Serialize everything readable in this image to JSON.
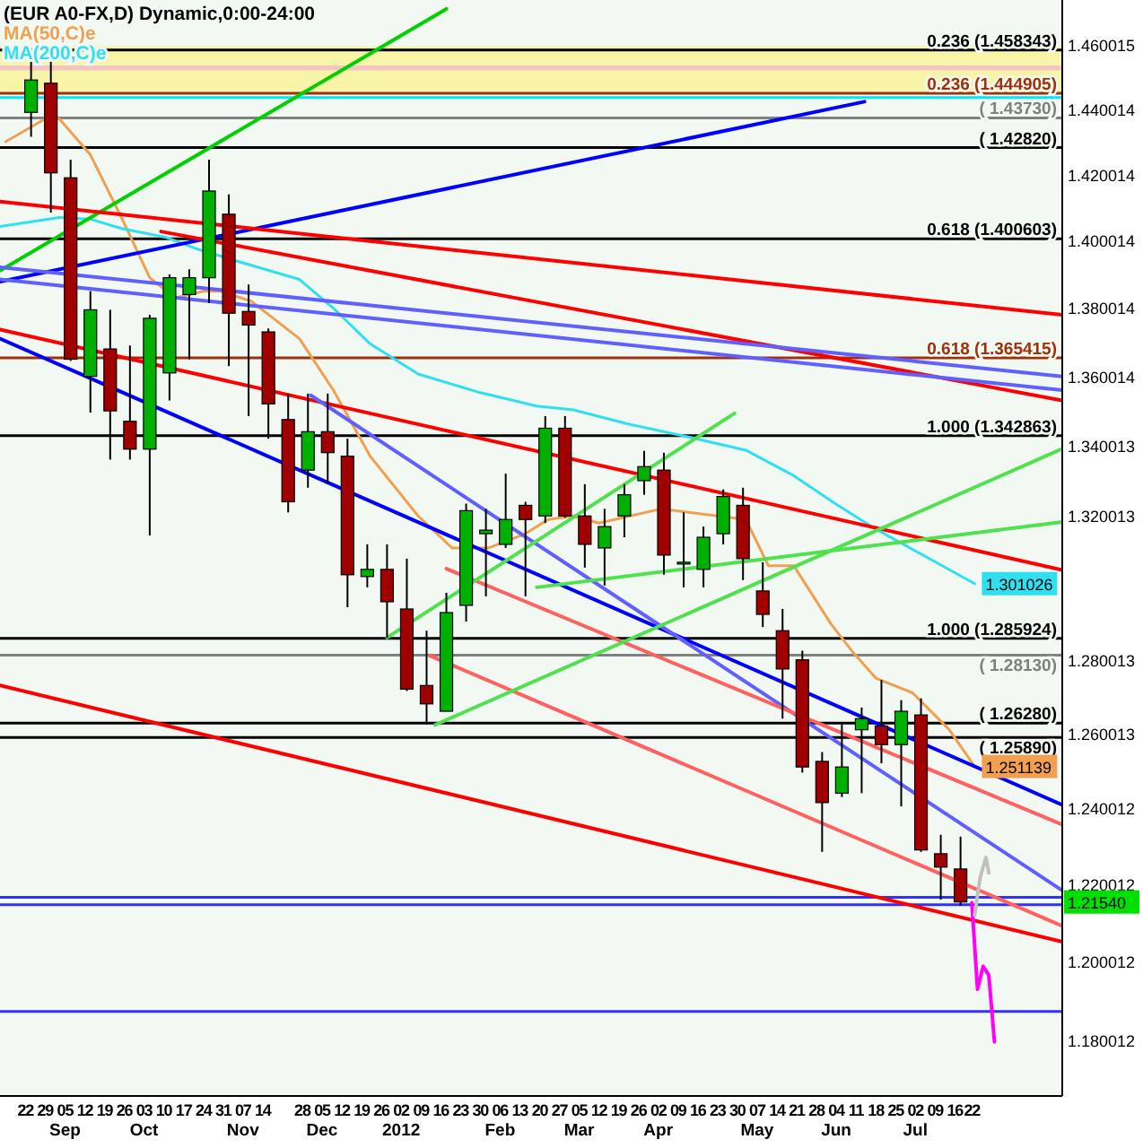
{
  "chart_data": {
    "type": "candlestick",
    "title": "(EUR A0-FX,D) Dynamic,0:00-24:00",
    "log": true,
    "legend": "top left",
    "xlim": [
      "2011-08-13",
      "2012-08-23"
    ],
    "ylim": [
      1.166,
      1.474
    ],
    "xticks": [
      {
        "value": "2011-08-22",
        "label": "22"
      },
      {
        "value": "2011-08-29",
        "label": "29"
      },
      {
        "value": "2011-09-05",
        "label": "05\nSep"
      },
      {
        "value": "2011-09-12",
        "label": "12"
      },
      {
        "value": "2011-09-19",
        "label": "19"
      },
      {
        "value": "2011-09-26",
        "label": "26"
      },
      {
        "value": "2011-10-03",
        "label": "03\nOct"
      },
      {
        "value": "2011-10-10",
        "label": "10"
      },
      {
        "value": "2011-10-17",
        "label": "17"
      },
      {
        "value": "2011-10-24",
        "label": "24"
      },
      {
        "value": "2011-10-31",
        "label": "31"
      },
      {
        "value": "2011-11-07",
        "label": "07\nNov"
      },
      {
        "value": "2011-11-14",
        "label": "14"
      },
      {
        "value": "2011-11-28",
        "label": "28"
      },
      {
        "value": "2011-12-05",
        "label": "05\nDec"
      },
      {
        "value": "2011-12-12",
        "label": "12"
      },
      {
        "value": "2011-12-19",
        "label": "19"
      },
      {
        "value": "2011-12-26",
        "label": "26"
      },
      {
        "value": "2012-01-02",
        "label": "02\n2012"
      },
      {
        "value": "2012-01-09",
        "label": "09"
      },
      {
        "value": "2012-01-16",
        "label": "16"
      },
      {
        "value": "2012-01-23",
        "label": "23"
      },
      {
        "value": "2012-01-30",
        "label": "30"
      },
      {
        "value": "2012-02-06",
        "label": "06\nFeb"
      },
      {
        "value": "2012-02-13",
        "label": "13"
      },
      {
        "value": "2012-02-20",
        "label": "20"
      },
      {
        "value": "2012-02-27",
        "label": "27"
      },
      {
        "value": "2012-03-05",
        "label": "05\nMar"
      },
      {
        "value": "2012-03-12",
        "label": "12"
      },
      {
        "value": "2012-03-19",
        "label": "19"
      },
      {
        "value": "2012-03-26",
        "label": "26"
      },
      {
        "value": "2012-04-02",
        "label": "02\nApr"
      },
      {
        "value": "2012-04-09",
        "label": "09"
      },
      {
        "value": "2012-04-16",
        "label": "16"
      },
      {
        "value": "2012-04-23",
        "label": "23"
      },
      {
        "value": "2012-04-30",
        "label": "30"
      },
      {
        "value": "2012-05-07",
        "label": "07\nMay"
      },
      {
        "value": "2012-05-14",
        "label": "14"
      },
      {
        "value": "2012-05-21",
        "label": "21"
      },
      {
        "value": "2012-05-28",
        "label": "28"
      },
      {
        "value": "2012-06-04",
        "label": "04\nJun"
      },
      {
        "value": "2012-06-11",
        "label": "11"
      },
      {
        "value": "2012-06-18",
        "label": "18"
      },
      {
        "value": "2012-06-25",
        "label": "25"
      },
      {
        "value": "2012-07-02",
        "label": "02\nJul"
      },
      {
        "value": "2012-07-09",
        "label": "09"
      },
      {
        "value": "2012-07-16",
        "label": "16"
      },
      {
        "value": "2012-07-22",
        "label": "22"
      }
    ],
    "yticks": [
      1.460015,
      1.440014,
      1.420014,
      1.400014,
      1.380014,
      1.360014,
      1.340013,
      1.320013,
      1.280013,
      1.260013,
      1.240012,
      1.220012,
      1.200012,
      1.180012
    ],
    "x": [
      "2011-08-24",
      "2011-08-31",
      "2011-09-07",
      "2011-09-14",
      "2011-09-21",
      "2011-09-28",
      "2011-10-05",
      "2011-10-12",
      "2011-10-19",
      "2011-10-26",
      "2011-11-02",
      "2011-11-09",
      "2011-11-16",
      "2011-11-23",
      "2011-11-30",
      "2011-12-07",
      "2011-12-14",
      "2011-12-21",
      "2011-12-28",
      "2012-01-04",
      "2012-01-11",
      "2012-01-18",
      "2012-01-25",
      "2012-02-01",
      "2012-02-08",
      "2012-02-15",
      "2012-02-22",
      "2012-02-29",
      "2012-03-07",
      "2012-03-14",
      "2012-03-21",
      "2012-03-28",
      "2012-04-04",
      "2012-04-11",
      "2012-04-18",
      "2012-04-25",
      "2012-05-02",
      "2012-05-09",
      "2012-05-16",
      "2012-05-23",
      "2012-05-30",
      "2012-06-06",
      "2012-06-13",
      "2012-06-20",
      "2012-06-27",
      "2012-07-04",
      "2012-07-11",
      "2012-07-18"
    ],
    "ohlc": [
      [
        1.439,
        1.455,
        1.4315,
        1.449
      ],
      [
        1.448,
        1.455,
        1.4085,
        1.4205
      ],
      [
        1.419,
        1.4245,
        1.3645,
        1.365
      ],
      [
        1.36,
        1.385,
        1.3495,
        1.3795
      ],
      [
        1.368,
        1.3795,
        1.336,
        1.35
      ],
      [
        1.347,
        1.369,
        1.336,
        1.339
      ],
      [
        1.339,
        1.378,
        1.3145,
        1.377
      ],
      [
        1.361,
        1.39,
        1.353,
        1.389
      ],
      [
        1.384,
        1.3915,
        1.365,
        1.389
      ],
      [
        1.389,
        1.4245,
        1.3815,
        1.415
      ],
      [
        1.408,
        1.414,
        1.363,
        1.3785
      ],
      [
        1.379,
        1.387,
        1.3485,
        1.375
      ],
      [
        1.373,
        1.374,
        1.342,
        1.352
      ],
      [
        1.3475,
        1.355,
        1.321,
        1.324
      ],
      [
        1.333,
        1.355,
        1.328,
        1.344
      ],
      [
        1.344,
        1.355,
        1.329,
        1.338
      ],
      [
        1.337,
        1.342,
        1.2945,
        1.3035
      ],
      [
        1.303,
        1.312,
        1.3,
        1.305
      ],
      [
        1.305,
        1.312,
        1.286,
        1.296
      ],
      [
        1.294,
        1.308,
        1.2715,
        1.272
      ],
      [
        1.273,
        1.288,
        1.2625,
        1.268
      ],
      [
        1.266,
        1.2985,
        1.266,
        1.293
      ],
      [
        1.295,
        1.3235,
        1.2905,
        1.3215
      ],
      [
        1.315,
        1.322,
        1.2975,
        1.316
      ],
      [
        1.312,
        1.332,
        1.311,
        1.319
      ],
      [
        1.323,
        1.324,
        1.2975,
        1.319
      ],
      [
        1.32,
        1.3485,
        1.318,
        1.345
      ],
      [
        1.345,
        1.3485,
        1.3195,
        1.32
      ],
      [
        1.32,
        1.329,
        1.3055,
        1.312
      ],
      [
        1.311,
        1.322,
        1.3005,
        1.317
      ],
      [
        1.32,
        1.329,
        1.314,
        1.326
      ],
      [
        1.33,
        1.3385,
        1.326,
        1.334
      ],
      [
        1.333,
        1.338,
        1.3035,
        1.309
      ],
      [
        1.307,
        1.321,
        1.3,
        1.307
      ],
      [
        1.305,
        1.317,
        1.3,
        1.314
      ],
      [
        1.315,
        1.3275,
        1.312,
        1.3255
      ],
      [
        1.323,
        1.328,
        1.302,
        1.308
      ],
      [
        1.299,
        1.307,
        1.289,
        1.2925
      ],
      [
        1.288,
        1.294,
        1.264,
        1.2775
      ],
      [
        1.28,
        1.2825,
        1.2495,
        1.251
      ],
      [
        1.2525,
        1.255,
        1.2285,
        1.2415
      ],
      [
        1.244,
        1.2625,
        1.243,
        1.251
      ],
      [
        1.261,
        1.267,
        1.244,
        1.264
      ],
      [
        1.262,
        1.2745,
        1.252,
        1.257
      ],
      [
        1.257,
        1.269,
        1.2405,
        1.266
      ],
      [
        1.265,
        1.2695,
        1.2285,
        1.229
      ],
      [
        1.228,
        1.233,
        1.216,
        1.2245
      ],
      [
        1.224,
        1.2325,
        1.2145,
        1.2154
      ]
    ],
    "series": [
      {
        "type": "line",
        "name": "MA(50,C)e",
        "color": "#f0a050",
        "x": [
          "2011-08-15",
          "2011-08-29",
          "2011-09-03",
          "2011-09-14",
          "2011-09-25",
          "2011-10-05",
          "2011-10-14",
          "2011-10-24",
          "2011-10-30",
          "2011-11-10",
          "2011-11-27",
          "2011-12-09",
          "2011-12-22",
          "2012-01-08",
          "2012-01-20",
          "2012-02-02",
          "2012-02-15",
          "2012-02-23",
          "2012-03-03",
          "2012-03-12",
          "2012-04-03",
          "2012-05-03",
          "2012-05-11",
          "2012-05-20",
          "2012-06-02",
          "2012-06-10",
          "2012-06-18",
          "2012-07-01",
          "2012-07-14",
          "2012-07-23"
        ],
        "values": [
          1.43,
          1.437,
          1.437,
          1.426,
          1.407,
          1.389,
          1.383,
          1.385,
          1.385,
          1.382,
          1.371,
          1.356,
          1.337,
          1.32,
          1.311,
          1.311,
          1.315,
          1.319,
          1.32,
          1.318,
          1.322,
          1.319,
          1.306,
          1.306,
          1.29,
          1.282,
          1.275,
          1.271,
          1.261,
          1.251139
        ],
        "value_labels": [
          null,
          null,
          null,
          null,
          null,
          null,
          null,
          null,
          null,
          null,
          null,
          null,
          null,
          null,
          null,
          null,
          null,
          null,
          null,
          null,
          null,
          null,
          null,
          null,
          null,
          null,
          null,
          null,
          null,
          "1.251139"
        ]
      },
      {
        "type": "line",
        "name": "MA(200,C)e",
        "color": "#30e0f0",
        "x": [
          "2011-08-13",
          "2011-09-03",
          "2011-09-14",
          "2011-09-25",
          "2011-10-11",
          "2011-10-22",
          "2011-11-05",
          "2011-11-27",
          "2011-12-09",
          "2011-12-22",
          "2012-01-08",
          "2012-01-29",
          "2012-02-19",
          "2012-03-03",
          "2012-03-22",
          "2012-04-12",
          "2012-05-03",
          "2012-05-20",
          "2012-06-04",
          "2012-06-18",
          "2012-07-23"
        ],
        "values": [
          1.4043,
          1.407,
          1.4065,
          1.4037,
          1.401,
          1.3975,
          1.3939,
          1.3885,
          1.38,
          1.3695,
          1.3607,
          1.3555,
          1.3514,
          1.3503,
          1.3463,
          1.3426,
          1.3387,
          1.3314,
          1.3233,
          1.3163,
          1.301026
        ],
        "value_labels": [
          null,
          null,
          null,
          null,
          null,
          null,
          null,
          null,
          null,
          null,
          null,
          null,
          null,
          null,
          null,
          null,
          null,
          null,
          null,
          null,
          "1.301026"
        ]
      },
      {
        "type": "line",
        "color": "#00d000",
        "x": [
          "2011-08-13",
          "2012-01-18"
        ],
        "values": [
          1.3911,
          1.4712
        ]
      },
      {
        "type": "line",
        "color": "#0000ff",
        "x": [
          "2011-08-13",
          "2012-06-14"
        ],
        "values": [
          1.3878,
          1.4423
        ]
      },
      {
        "type": "line",
        "color": "#ff0000",
        "x": [
          "2011-08-13",
          "2012-08-23"
        ],
        "values": [
          1.4118,
          1.378
        ]
      },
      {
        "type": "line",
        "color": "#ff0000",
        "x": [
          "2011-10-09",
          "2012-08-23"
        ],
        "values": [
          1.4028,
          1.353
        ]
      },
      {
        "type": "line",
        "color": "#ff0000",
        "x": [
          "2011-08-13",
          "2012-08-23"
        ],
        "values": [
          1.3737,
          1.3048
        ]
      },
      {
        "type": "line",
        "color": "#ff0000",
        "x": [
          "2011-08-13",
          "2012-08-23"
        ],
        "values": [
          1.273,
          1.2051
        ]
      },
      {
        "type": "line",
        "color": "#0000ff",
        "x": [
          "2011-08-13",
          "2012-08-23"
        ],
        "values": [
          1.371,
          1.2409
        ]
      },
      {
        "type": "line",
        "color": "#6060ff",
        "x": [
          "2011-08-13",
          "2012-08-23"
        ],
        "values": [
          1.3921,
          1.36
        ]
      },
      {
        "type": "line",
        "color": "#6060ff",
        "x": [
          "2011-08-13",
          "2012-08-23"
        ],
        "values": [
          1.3885,
          1.356
        ]
      },
      {
        "type": "line",
        "color": "#6060ff",
        "x": [
          "2011-12-01",
          "2012-08-23"
        ],
        "values": [
          1.3545,
          1.2184
        ]
      },
      {
        "type": "line",
        "color": "#ff6060",
        "x": [
          "2012-01-18",
          "2012-08-23"
        ],
        "values": [
          1.3052,
          1.2357
        ]
      },
      {
        "type": "line",
        "color": "#ff6060",
        "x": [
          "2012-01-12",
          "2012-08-23"
        ],
        "values": [
          1.2812,
          1.2092
        ]
      },
      {
        "type": "line",
        "color": "#50e050",
        "x": [
          "2012-01-14",
          "2012-08-23"
        ],
        "values": [
          1.2623,
          1.3391
        ]
      },
      {
        "type": "line",
        "color": "#50e050",
        "x": [
          "2011-12-28",
          "2012-04-29"
        ],
        "values": [
          1.2861,
          1.3493
        ]
      },
      {
        "type": "line",
        "color": "#50e050",
        "x": [
          "2012-02-19",
          "2012-08-23"
        ],
        "values": [
          1.3,
          1.3183
        ]
      },
      {
        "type": "line",
        "color": "#ff00ff",
        "x": [
          "2012-07-22",
          "2012-07-24",
          "2012-07-26",
          "2012-07-28",
          "2012-07-30"
        ],
        "values": [
          1.2152,
          1.1929,
          1.1988,
          1.1965,
          1.1796
        ]
      },
      {
        "type": "line",
        "color": "#c0c0c0",
        "x": [
          "2012-07-23",
          "2012-07-25",
          "2012-07-27",
          "2012-07-28"
        ],
        "values": [
          1.212,
          1.222,
          1.227,
          1.223
        ]
      }
    ],
    "bands": [
      {
        "axis": "y",
        "from": 1.4449,
        "to": 1.4595,
        "color": "#f8f4a8"
      },
      {
        "axis": "y",
        "from": 1.452,
        "to": 1.4535,
        "color": "#f4c4c4"
      }
    ],
    "ref_lines": [
      {
        "axis": "y",
        "value": 1.458343,
        "label": "0.236 (1.458343)",
        "color": "#000000"
      },
      {
        "axis": "y",
        "value": 1.444905,
        "label": "0.236 (1.444905)",
        "color": "#a0300a"
      },
      {
        "axis": "y",
        "value": 1.4436,
        "color": "#00e8ff"
      },
      {
        "axis": "y",
        "value": 1.4373,
        "label": "( 1.43730)",
        "color": "#808080"
      },
      {
        "axis": "y",
        "value": 1.4282,
        "label": "( 1.42820)",
        "color": "#000000"
      },
      {
        "axis": "y",
        "value": 1.400603,
        "label": "0.618 (1.400603)",
        "color": "#000000"
      },
      {
        "axis": "y",
        "value": 1.365415,
        "label": "0.618 (1.365415)",
        "color": "#a0300a"
      },
      {
        "axis": "y",
        "value": 1.342863,
        "label": "1.000 (1.342863)",
        "color": "#000000"
      },
      {
        "axis": "y",
        "value": 1.285924,
        "label": "1.000 (1.285924)",
        "color": "#000000"
      },
      {
        "axis": "y",
        "value": 1.2813,
        "label": "( 1.28130)",
        "color": "#808080"
      },
      {
        "axis": "y",
        "value": 1.2628,
        "label": "( 1.26280)",
        "color": "#000000"
      },
      {
        "axis": "y",
        "value": 1.2589,
        "label": "( 1.25890)",
        "color": "#000000"
      },
      {
        "axis": "y",
        "value": 1.2166,
        "color": "#3030ff"
      },
      {
        "axis": "y",
        "value": 1.2147,
        "color": "#3030ff"
      },
      {
        "axis": "y",
        "value": 1.1873,
        "color": "#3030ff"
      }
    ],
    "annotations": [
      "1.21540"
    ]
  }
}
